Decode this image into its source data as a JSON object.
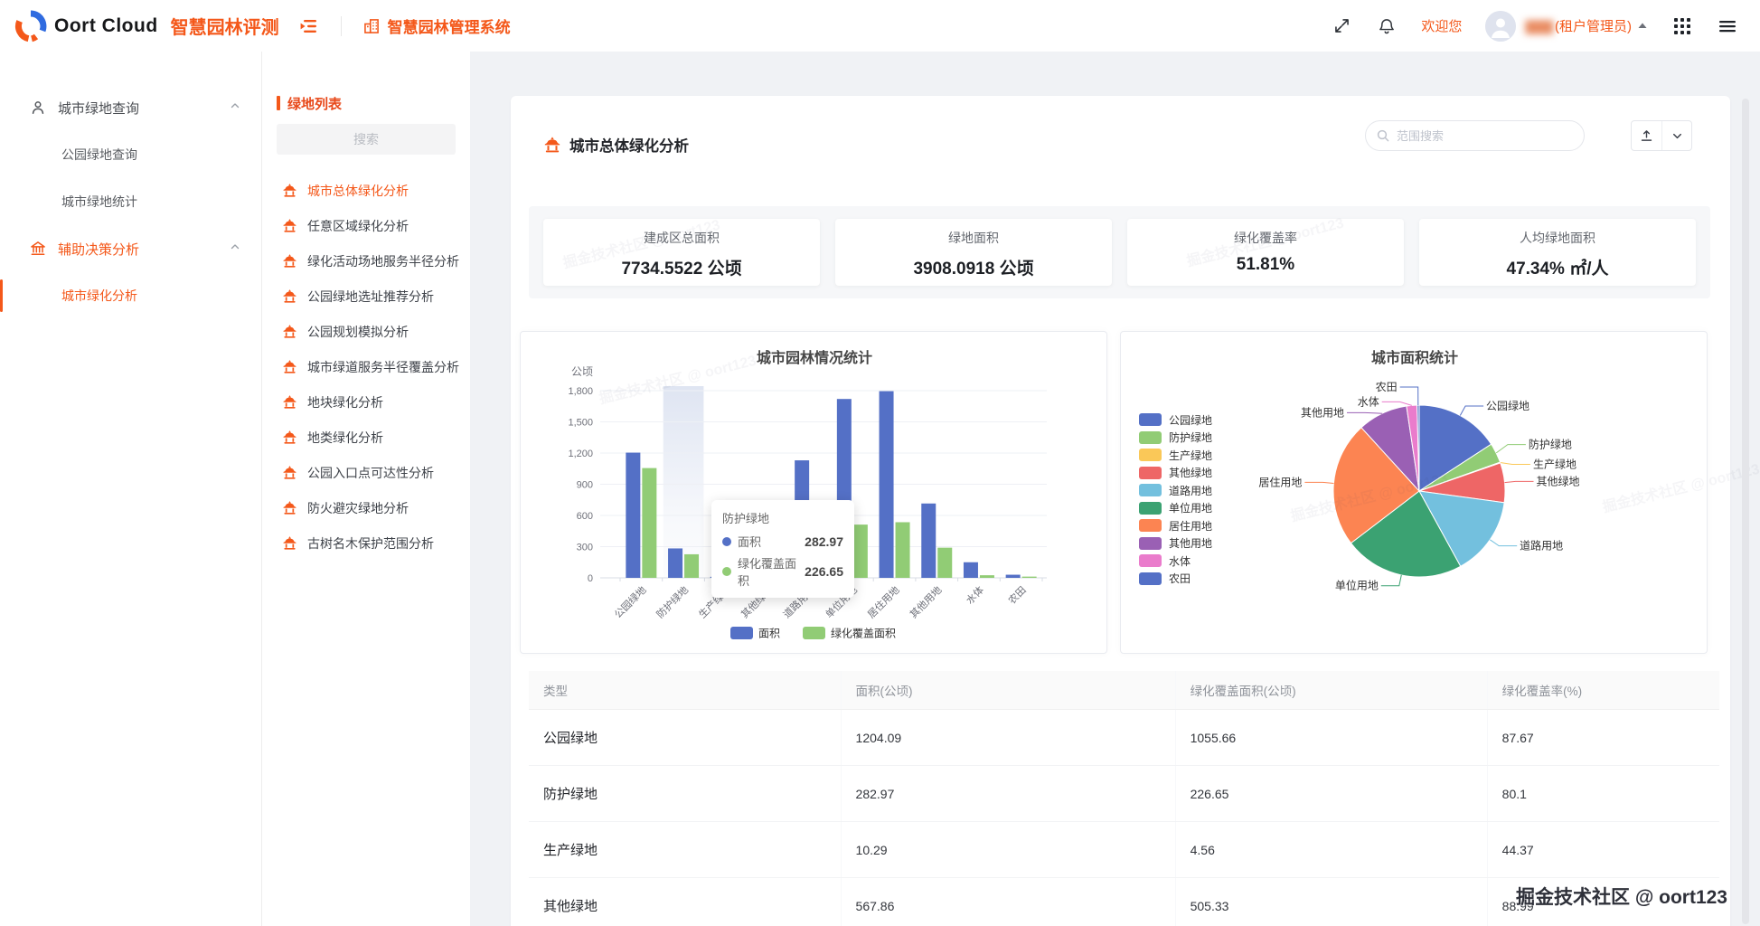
{
  "header": {
    "brand": "Oort Cloud",
    "app_subtitle": "智慧园林评测",
    "system_title": "智慧园林管理系统",
    "welcome": "欢迎您",
    "user_name": "▇▇▇",
    "user_role": "(租户管理员)"
  },
  "icons": {
    "brand-logo": "blue-orange-swirl-circle",
    "menu-collapse-icon": "outdent-bars",
    "building-icon": "city-buildings",
    "fullscreen-icon": "diagonal-arrows",
    "bell-icon": "notification-bell",
    "apps-grid-icon": "3x3-dots",
    "menu-icon": "hamburger",
    "user-icon": "person-outline",
    "bank-icon": "classical-building",
    "pavilion-icon": "chinese-pavilion",
    "search-icon": "magnifier",
    "upload-icon": "arrow-up-tray",
    "chevron-down-icon": "chevron-down",
    "chevron-up-icon": "chevron-up",
    "caret-up-icon": "small-triangle-up"
  },
  "sidebar": {
    "groups": [
      {
        "label": "城市绿地查询",
        "icon": "user",
        "accent": false,
        "expanded": true,
        "items": [
          {
            "label": "公园绿地查询",
            "active": false
          },
          {
            "label": "城市绿地统计",
            "active": false
          }
        ]
      },
      {
        "label": "辅助决策分析",
        "icon": "bank",
        "accent": true,
        "expanded": true,
        "items": [
          {
            "label": "城市绿化分析",
            "active": true
          }
        ]
      }
    ]
  },
  "greenlist": {
    "title": "绿地列表",
    "search_placeholder": "搜索",
    "active_index": 0,
    "items": [
      "城市总体绿化分析",
      "任意区域绿化分析",
      "绿化活动场地服务半径分析",
      "公园绿地选址推荐分析",
      "公园规划模拟分析",
      "城市绿道服务半径覆盖分析",
      "地块绿化分析",
      "地类绿化分析",
      "公园入口点可达性分析",
      "防火避灾绿地分析",
      "古树名木保护范围分析"
    ]
  },
  "main": {
    "title": "城市总体绿化分析",
    "search_placeholder": "范围搜索",
    "stats": [
      {
        "label": "建成区总面积",
        "value": "7734.5522 公顷"
      },
      {
        "label": "绿地面积",
        "value": "3908.0918 公顷"
      },
      {
        "label": "绿化覆盖率",
        "value": "51.81%"
      },
      {
        "label": "人均绿地面积",
        "value": "47.34% ㎡/人"
      }
    ]
  },
  "chart_data": [
    {
      "type": "bar",
      "title": "城市园林情况统计",
      "unit_label": "公顷",
      "categories": [
        "公园绿地",
        "防护绿地",
        "生产绿地",
        "其他绿地",
        "道路用地",
        "单位用地",
        "居住用地",
        "其他用地",
        "水体",
        "农田"
      ],
      "series": [
        {
          "name": "面积",
          "color": "#5470c6",
          "values": [
            1204.09,
            282.97,
            10.29,
            567.86,
            1130,
            1720,
            1795,
            715,
            150,
            30
          ]
        },
        {
          "name": "绿化覆盖面积",
          "color": "#91cc75",
          "values": [
            1055.66,
            226.65,
            4.56,
            505.33,
            500,
            512,
            535,
            290,
            25,
            12
          ]
        }
      ],
      "ylim": [
        0,
        1800
      ],
      "ytick_step": 300,
      "grid": true,
      "legend_position": "bottom",
      "highlight_category_index": 1,
      "tooltip": {
        "category": "防护绿地",
        "rows": [
          {
            "series": "面积",
            "value": "282.97"
          },
          {
            "series": "绿化覆盖面积",
            "value": "226.65"
          }
        ]
      }
    },
    {
      "type": "pie",
      "title": "城市面积统计",
      "legend_position": "left",
      "slices": [
        {
          "name": "公园绿地",
          "value": 1204.09,
          "color": "#5470c6"
        },
        {
          "name": "防护绿地",
          "value": 282.97,
          "color": "#91cc75"
        },
        {
          "name": "生产绿地",
          "value": 10.29,
          "color": "#fac858"
        },
        {
          "name": "其他绿地",
          "value": 567.86,
          "color": "#ee6666"
        },
        {
          "name": "道路用地",
          "value": 1130,
          "color": "#73c0de"
        },
        {
          "name": "单位用地",
          "value": 1720,
          "color": "#3ba272"
        },
        {
          "name": "居住用地",
          "value": 1795,
          "color": "#fc8452"
        },
        {
          "name": "其他用地",
          "value": 715,
          "color": "#9a60b4"
        },
        {
          "name": "水体",
          "value": 150,
          "color": "#ea7ccc"
        },
        {
          "name": "农田",
          "value": 30,
          "color": "#5470c6"
        }
      ],
      "label_hints": {
        "防护绿地": [
          2,
          -4
        ],
        "生产绿地": [
          2,
          6
        ],
        "其他用地": [
          -14,
          10
        ],
        "水体": [
          -12,
          8
        ],
        "农田": [
          0,
          -8
        ]
      }
    }
  ],
  "table": {
    "headers": [
      "类型",
      "面积(公顷)",
      "绿化覆盖面积(公顷)",
      "绿化覆盖率(%)"
    ],
    "rows": [
      [
        "公园绿地",
        "1204.09",
        "1055.66",
        "87.67"
      ],
      [
        "防护绿地",
        "282.97",
        "226.65",
        "80.1"
      ],
      [
        "生产绿地",
        "10.29",
        "4.56",
        "44.37"
      ],
      [
        "其他绿地",
        "567.86",
        "505.33",
        "88.99"
      ]
    ]
  },
  "watermark": "掘金技术社区 @ oort123"
}
